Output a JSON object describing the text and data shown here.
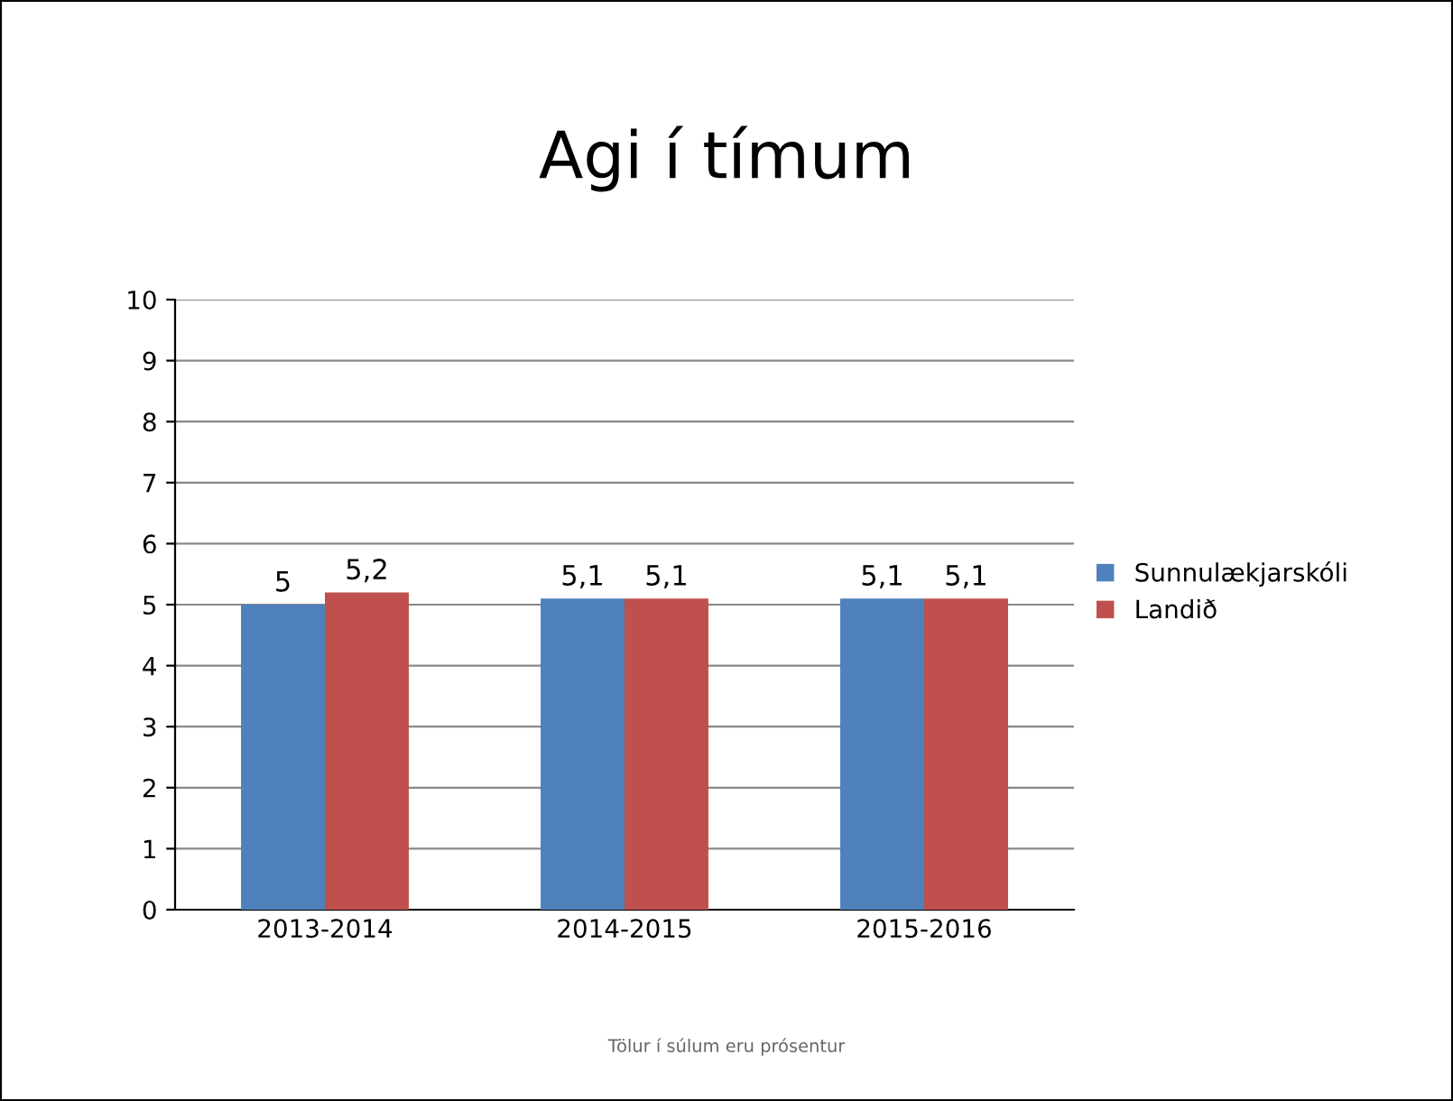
{
  "chart_data": {
    "type": "bar",
    "title": "Agi í tímum",
    "categories": [
      "2013-2014",
      "2014-2015",
      "2015-2016"
    ],
    "series": [
      {
        "name": "Sunnulækjarskóli",
        "color": "#4f81bd",
        "values": [
          5,
          5.1,
          5.1
        ],
        "value_labels": [
          "5",
          "5,1",
          "5,1"
        ]
      },
      {
        "name": "Landið",
        "color": "#c0504d",
        "values": [
          5.2,
          5.1,
          5.1
        ],
        "value_labels": [
          "5,2",
          "5,1",
          "5,1"
        ]
      }
    ],
    "ylim": [
      0,
      10
    ],
    "yticks": [
      0,
      1,
      2,
      3,
      4,
      5,
      6,
      7,
      8,
      9,
      10
    ],
    "grid": "y",
    "legend": "right",
    "annotations": [
      "Tölur í súlum eru prósentur"
    ]
  }
}
